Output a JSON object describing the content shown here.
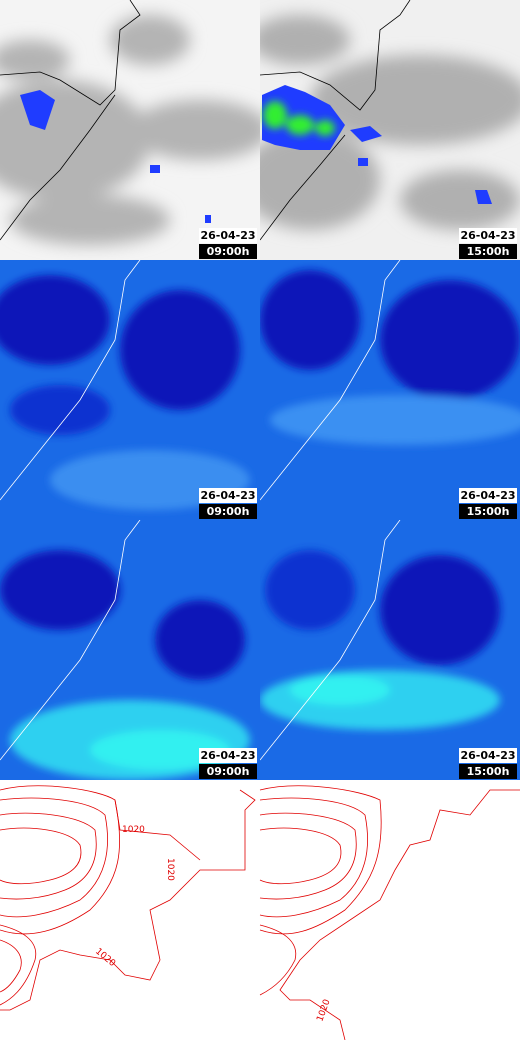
{
  "panels": [
    {
      "date": "26-04-23",
      "time": "09:00h"
    },
    {
      "date": "26-04-23",
      "time": "15:00h"
    },
    {
      "date": "26-04-23",
      "time": "09:00h"
    },
    {
      "date": "26-04-23",
      "time": "15:00h"
    },
    {
      "date": "26-04-23",
      "time": "09:00h"
    },
    {
      "date": "26-04-23",
      "time": "15:00h"
    }
  ],
  "isobar_panels": [
    {
      "labels": [
        "1020",
        "1020",
        "1020"
      ]
    },
    {
      "labels": [
        "1020"
      ]
    }
  ]
}
